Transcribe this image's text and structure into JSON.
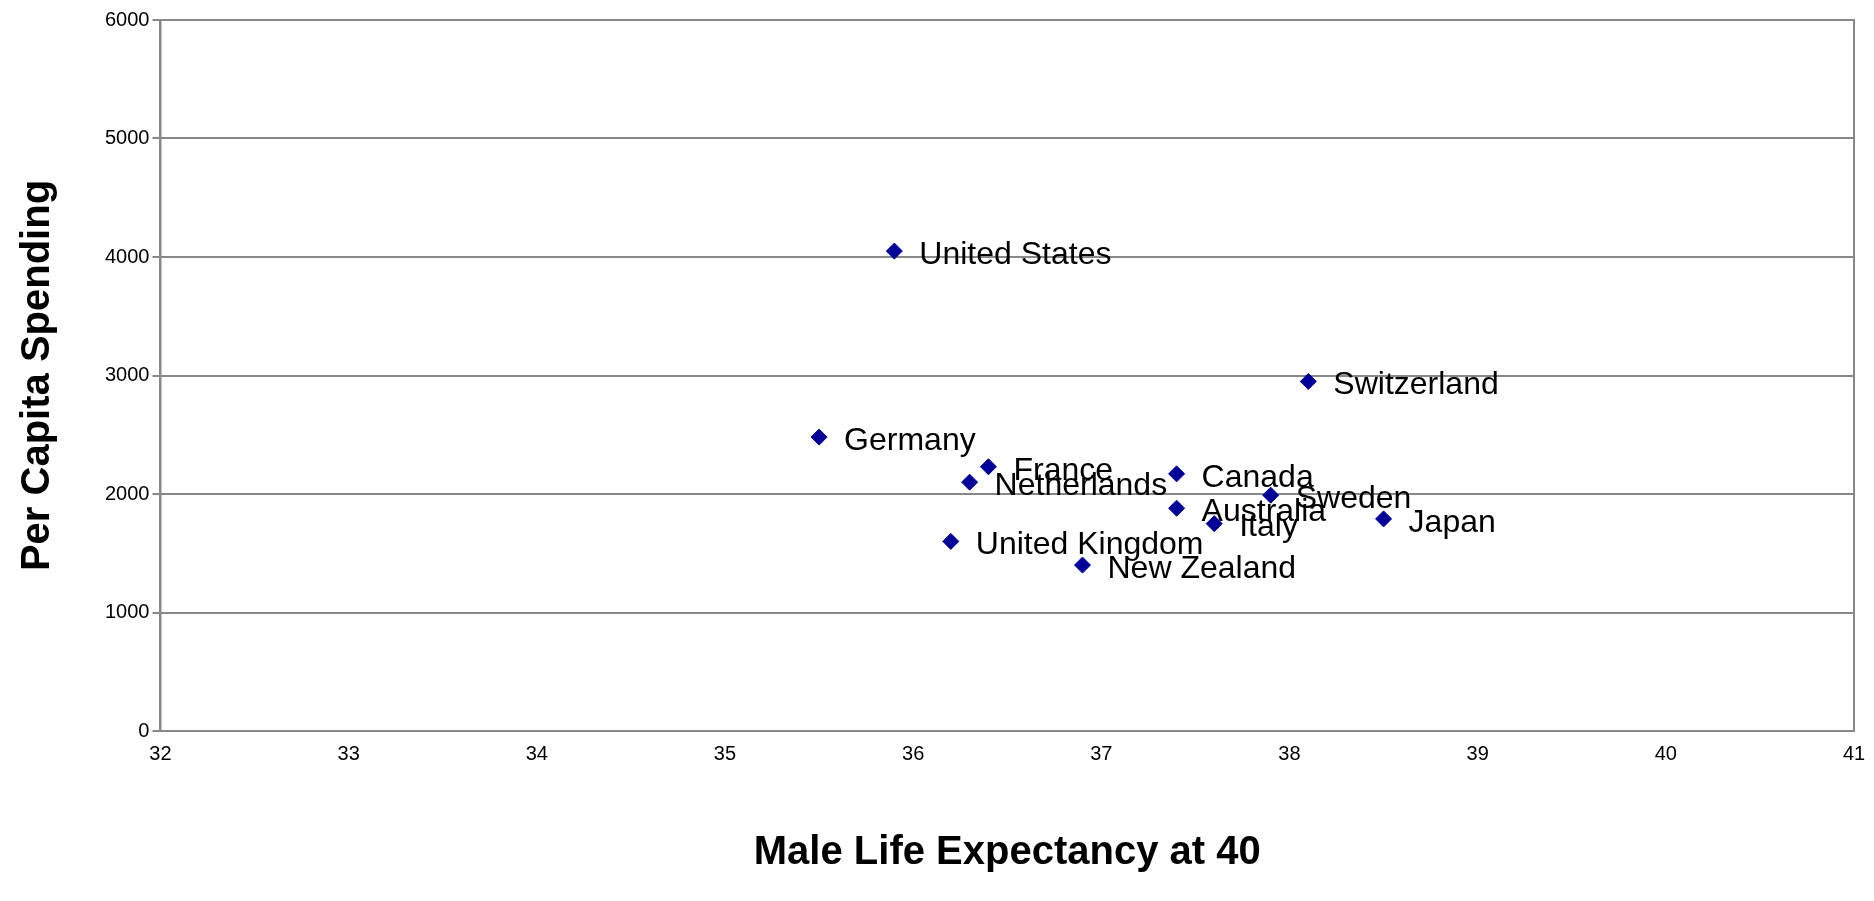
{
  "chart_data": {
    "type": "scatter",
    "xlabel": "Male Life Expectancy at 40",
    "ylabel": "Per Capita Spending",
    "xlim": [
      32,
      41
    ],
    "xticks": [
      32,
      33,
      34,
      35,
      36,
      37,
      38,
      39,
      40,
      41
    ],
    "ylim": [
      0,
      6000
    ],
    "yticks": [
      0,
      1000,
      2000,
      3000,
      4000,
      5000,
      6000
    ],
    "grid": "y",
    "legend": false,
    "marker": "diamond",
    "series": [
      {
        "name": "United States",
        "color": "#000099",
        "x": [
          35.9
        ],
        "values": [
          4050
        ]
      },
      {
        "name": "Switzerland",
        "color": "#000099",
        "x": [
          38.1
        ],
        "values": [
          2950
        ]
      },
      {
        "name": "Germany",
        "color": "#000099",
        "x": [
          35.5
        ],
        "values": [
          2480
        ]
      },
      {
        "name": "France",
        "color": "#000099",
        "x": [
          36.4
        ],
        "values": [
          2230
        ]
      },
      {
        "name": "Netherlands",
        "color": "#000099",
        "x": [
          36.3
        ],
        "values": [
          2100
        ]
      },
      {
        "name": "Canada",
        "color": "#000099",
        "x": [
          37.4
        ],
        "values": [
          2170
        ]
      },
      {
        "name": "Sweden",
        "color": "#000099",
        "x": [
          37.9
        ],
        "values": [
          1990
        ]
      },
      {
        "name": "Australia",
        "color": "#000099",
        "x": [
          37.4
        ],
        "values": [
          1880
        ]
      },
      {
        "name": "Italy",
        "color": "#000099",
        "x": [
          37.6
        ],
        "values": [
          1750
        ]
      },
      {
        "name": "Japan",
        "color": "#000099",
        "x": [
          38.5
        ],
        "values": [
          1790
        ]
      },
      {
        "name": "United Kingdom",
        "color": "#000099",
        "x": [
          36.2
        ],
        "values": [
          1600
        ]
      },
      {
        "name": "New Zealand",
        "color": "#000099",
        "x": [
          36.9
        ],
        "values": [
          1400
        ]
      }
    ]
  }
}
